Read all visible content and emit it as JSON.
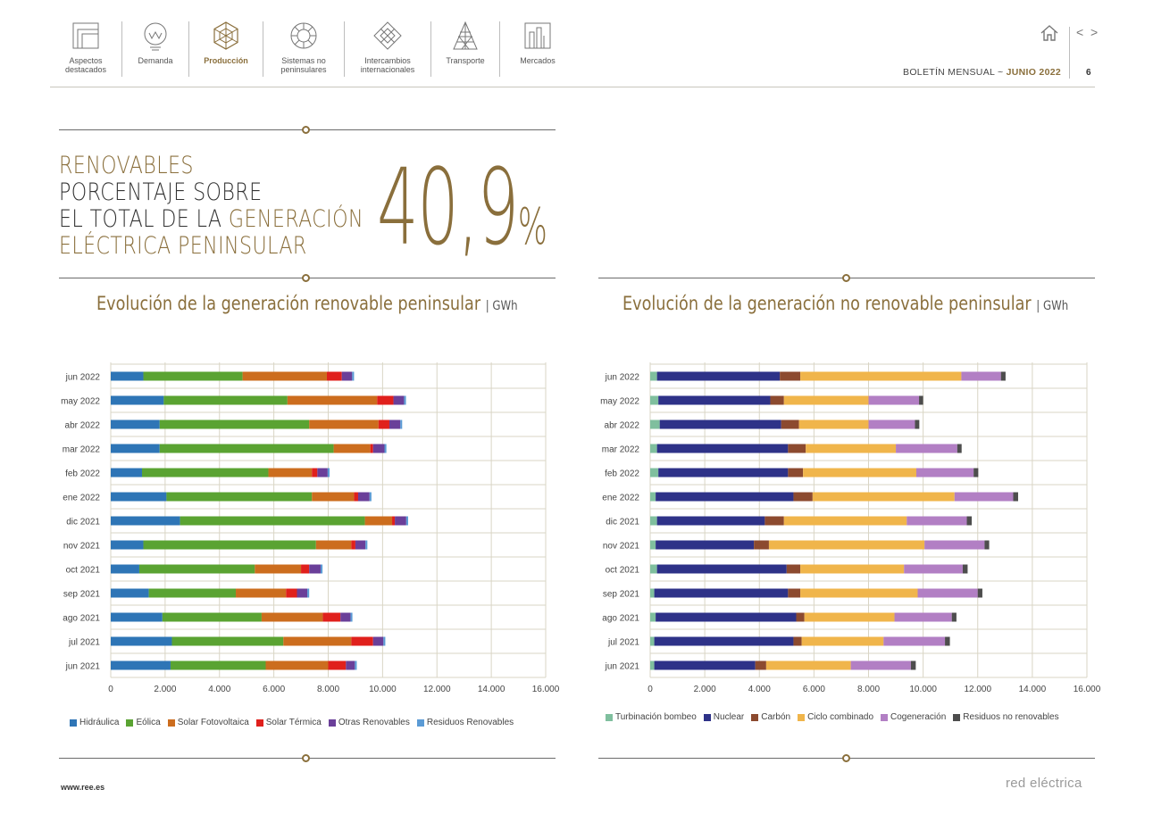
{
  "nav": {
    "items": [
      {
        "label": "Aspectos\ndestacados",
        "icon": "highlights-icon",
        "active": false
      },
      {
        "label": "Demanda",
        "icon": "demand-icon",
        "active": false
      },
      {
        "label": "Producción",
        "icon": "production-icon",
        "active": true
      },
      {
        "label": "Sistemas no\npeninsulares",
        "icon": "non-peninsular-icon",
        "active": false
      },
      {
        "label": "Intercambios\ninternacionales",
        "icon": "exchanges-icon",
        "active": false
      },
      {
        "label": "Transporte",
        "icon": "transmission-tower-icon",
        "active": false
      },
      {
        "label": "Mercados",
        "icon": "markets-icon",
        "active": false
      }
    ],
    "prev": "<",
    "next": ">"
  },
  "header": {
    "bulletin_label": "BOLETÍN MENSUAL",
    "separator": "~",
    "bulletin_month": "JUNIO 2022",
    "page": "6"
  },
  "headline": {
    "line1": "RENOVABLES",
    "line2": "PORCENTAJE SOBRE",
    "line3_a": "EL TOTAL DE LA ",
    "line3_b": "GENERACIÓN",
    "line4": "ELÉCTRICA PENINSULAR",
    "value": "40,9",
    "unit": "%"
  },
  "colors": {
    "gold": "#8a6f3c",
    "grid": "#d9d5c5"
  },
  "chart_data": [
    {
      "type": "bar",
      "orientation": "horizontal",
      "stacked": true,
      "title": "Evolución de la generación renovable peninsular",
      "unit": "GWh",
      "categories": [
        "jun 2022",
        "may 2022",
        "abr 2022",
        "mar 2022",
        "feb 2022",
        "ene 2022",
        "dic 2021",
        "nov 2021",
        "oct 2021",
        "sep 2021",
        "ago 2021",
        "jul 2021",
        "jun 2021"
      ],
      "xlim": [
        0,
        16000
      ],
      "xticks": [
        "0",
        "2.000",
        "4.000",
        "6.000",
        "8.000",
        "10.000",
        "12.000",
        "14.000",
        "16.000"
      ],
      "grid": true,
      "legend": "bottom",
      "series": [
        {
          "name": "Hidráulica",
          "color": "#2e75b6",
          "values": [
            1200,
            1950,
            1800,
            1800,
            1150,
            2050,
            2550,
            1200,
            1050,
            1400,
            1900,
            2250,
            2200
          ]
        },
        {
          "name": "Eólica",
          "color": "#5aa332",
          "values": [
            3650,
            4550,
            5500,
            6400,
            4650,
            5350,
            6800,
            6350,
            4250,
            3200,
            3650,
            4100,
            3500
          ]
        },
        {
          "name": "Solar Fotovoltaica",
          "color": "#cc6d1e",
          "values": [
            3100,
            3300,
            2550,
            1350,
            1600,
            1550,
            1000,
            1300,
            1700,
            1850,
            2250,
            2500,
            2300
          ]
        },
        {
          "name": "Solar Térmica",
          "color": "#e0201c",
          "values": [
            550,
            600,
            400,
            100,
            200,
            150,
            100,
            150,
            300,
            400,
            650,
            800,
            650
          ]
        },
        {
          "name": "Otras Renovables",
          "color": "#6a3f99",
          "values": [
            380,
            390,
            400,
            420,
            380,
            420,
            420,
            370,
            420,
            380,
            370,
            380,
            330
          ]
        },
        {
          "name": "Residuos Renovables",
          "color": "#5b9bd5",
          "values": [
            70,
            70,
            70,
            70,
            70,
            70,
            70,
            70,
            70,
            70,
            70,
            70,
            70
          ]
        }
      ]
    },
    {
      "type": "bar",
      "orientation": "horizontal",
      "stacked": true,
      "title": "Evolución de la generación no renovable peninsular",
      "unit": "GWh",
      "categories": [
        "jun 2022",
        "may 2022",
        "abr 2022",
        "mar 2022",
        "feb 2022",
        "ene 2022",
        "dic 2021",
        "nov 2021",
        "oct 2021",
        "sep 2021",
        "ago 2021",
        "jul 2021",
        "jun 2021"
      ],
      "xlim": [
        0,
        16000
      ],
      "xticks": [
        "0",
        "2.000",
        "4.000",
        "6.000",
        "8.000",
        "10.000",
        "12.000",
        "14.000",
        "16.000"
      ],
      "grid": true,
      "legend": "bottom",
      "series": [
        {
          "name": "Turbinación bombeo",
          "color": "#7fbf9e",
          "values": [
            250,
            300,
            350,
            250,
            300,
            200,
            250,
            200,
            250,
            150,
            200,
            150,
            150
          ]
        },
        {
          "name": "Nuclear",
          "color": "#2e3288",
          "values": [
            4500,
            4100,
            4450,
            4800,
            4750,
            5050,
            3950,
            3600,
            4750,
            4900,
            5150,
            5100,
            3700
          ]
        },
        {
          "name": "Carbón",
          "color": "#8c4a2f",
          "values": [
            750,
            500,
            650,
            650,
            550,
            700,
            700,
            550,
            500,
            450,
            300,
            300,
            400
          ]
        },
        {
          "name": "Ciclo combinado",
          "color": "#f0b54b",
          "values": [
            5900,
            3100,
            2550,
            3300,
            4150,
            5200,
            4500,
            5700,
            3800,
            4300,
            3300,
            3000,
            3100
          ]
        },
        {
          "name": "Cogeneración",
          "color": "#b27fc4",
          "values": [
            1450,
            1850,
            1700,
            2250,
            2100,
            2150,
            2200,
            2200,
            2150,
            2200,
            2100,
            2250,
            2200
          ]
        },
        {
          "name": "Residuos no renovables",
          "color": "#4d4d4d",
          "values": [
            170,
            150,
            160,
            160,
            170,
            180,
            180,
            170,
            180,
            170,
            170,
            180,
            180
          ]
        }
      ]
    }
  ],
  "footer": {
    "url": "www.ree.es",
    "brand": "red eléctrica"
  }
}
